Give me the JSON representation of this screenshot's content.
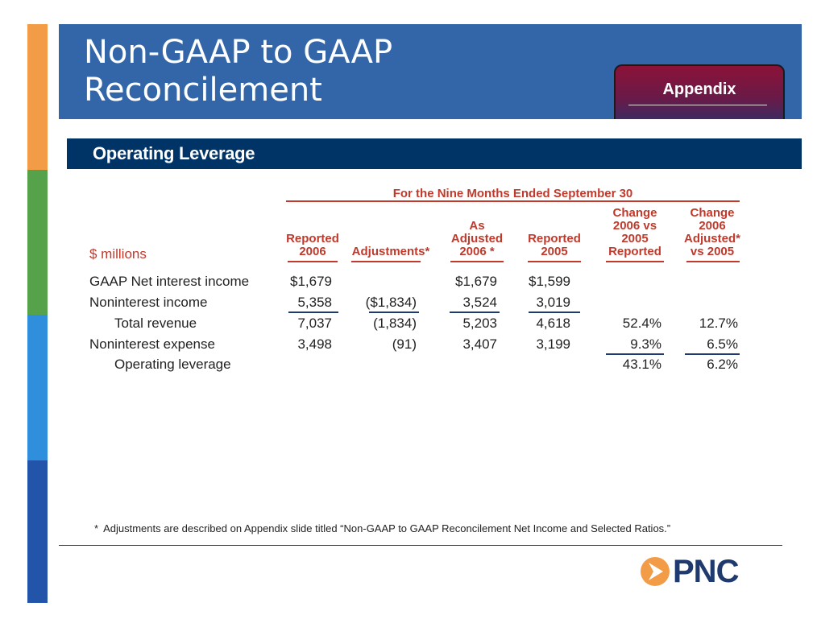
{
  "slide": {
    "title_line1": "Non-GAAP to GAAP",
    "title_line2": "Reconcilement",
    "tab_label": "Appendix",
    "section_title": "Operating Leverage"
  },
  "table": {
    "period_header": "For the Nine Months Ended September 30",
    "units_label": "$ millions",
    "columns": [
      {
        "lines": [
          "Reported",
          "2006"
        ]
      },
      {
        "lines": [
          "Adjustments*"
        ]
      },
      {
        "lines": [
          "As",
          "Adjusted",
          "2006 *"
        ]
      },
      {
        "lines": [
          "Reported",
          "2005"
        ]
      },
      {
        "lines": [
          "Change",
          "2006 vs",
          "2005",
          "Reported"
        ]
      },
      {
        "lines": [
          "Change",
          "2006",
          "Adjusted*",
          "vs 2005"
        ]
      }
    ],
    "rows": [
      {
        "label": "GAAP Net interest income",
        "values": [
          "$1,679",
          "",
          "$1,679",
          "$1,599",
          "",
          ""
        ]
      },
      {
        "label": "Noninterest income",
        "values": [
          "5,358",
          "($1,834)",
          "3,524",
          "3,019",
          "",
          ""
        ]
      },
      {
        "label": "Total revenue",
        "values": [
          "7,037",
          "(1,834)",
          "5,203",
          "4,618",
          "52.4%",
          "12.7%"
        ]
      },
      {
        "label": "Noninterest expense",
        "values": [
          "3,498",
          "(91)",
          "3,407",
          "3,199",
          "9.3%",
          "6.5%"
        ]
      },
      {
        "label": "Operating leverage",
        "values": [
          "",
          "",
          "",
          "",
          "43.1%",
          "6.2%"
        ]
      }
    ]
  },
  "footnote": {
    "marker": "*",
    "text": "Adjustments are described on Appendix slide titled “Non-GAAP to GAAP Reconcilement Net Income and Selected Ratios.”"
  },
  "logo": {
    "text": "PNC",
    "mark_color": "#f39c48",
    "icon": "pnc-arrow-icon"
  }
}
